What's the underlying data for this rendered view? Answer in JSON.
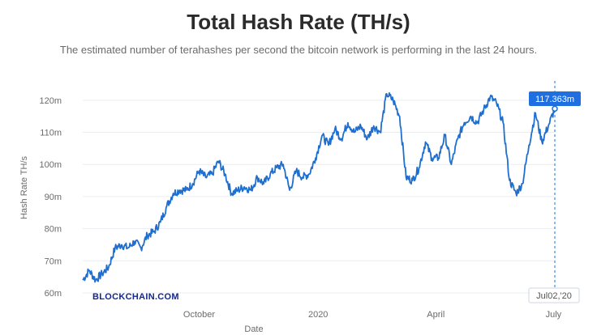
{
  "chart_data": {
    "type": "line",
    "title": "Total Hash Rate (TH/s)",
    "subtitle": "The estimated number of terahashes per second the bitcoin network is performing in the last 24 hours.",
    "xlabel": "Date",
    "ylabel": "Hash Rate TH/s",
    "ylim": [
      60,
      125
    ],
    "y_ticks": [
      {
        "value": 60,
        "label": "60m"
      },
      {
        "value": 70,
        "label": "70m"
      },
      {
        "value": 80,
        "label": "80m"
      },
      {
        "value": 90,
        "label": "90m"
      },
      {
        "value": 100,
        "label": "100m"
      },
      {
        "value": 110,
        "label": "110m"
      },
      {
        "value": 120,
        "label": "120m"
      }
    ],
    "xlim": [
      "2019-07-03",
      "2020-07-02"
    ],
    "x_ticks": [
      {
        "value": "2019-10-01",
        "label": "October"
      },
      {
        "value": "2020-01-01",
        "label": "2020"
      },
      {
        "value": "2020-04-01",
        "label": "April"
      },
      {
        "value": "2020-07-01",
        "label": "July"
      }
    ],
    "grid": true,
    "line_color": "#1f6fd1",
    "series": [
      {
        "x": [
          "2019-07-03",
          "2019-07-08",
          "2019-07-13",
          "2019-07-18",
          "2019-07-23",
          "2019-07-28",
          "2019-08-02",
          "2019-08-07",
          "2019-08-12",
          "2019-08-17",
          "2019-08-22",
          "2019-08-27",
          "2019-09-01",
          "2019-09-06",
          "2019-09-11",
          "2019-09-16",
          "2019-09-21",
          "2019-09-26",
          "2019-10-01",
          "2019-10-06",
          "2019-10-11",
          "2019-10-16",
          "2019-10-21",
          "2019-10-26",
          "2019-10-31",
          "2019-11-05",
          "2019-11-10",
          "2019-11-15",
          "2019-11-20",
          "2019-11-25",
          "2019-11-30",
          "2019-12-05",
          "2019-12-10",
          "2019-12-15",
          "2019-12-20",
          "2019-12-25",
          "2019-12-30",
          "2020-01-04",
          "2020-01-09",
          "2020-01-14",
          "2020-01-19",
          "2020-01-24",
          "2020-01-29",
          "2020-02-03",
          "2020-02-08",
          "2020-02-13",
          "2020-02-18",
          "2020-02-23",
          "2020-02-28",
          "2020-03-04",
          "2020-03-09",
          "2020-03-14",
          "2020-03-19",
          "2020-03-24",
          "2020-03-29",
          "2020-04-03",
          "2020-04-08",
          "2020-04-13",
          "2020-04-18",
          "2020-04-23",
          "2020-04-28",
          "2020-05-03",
          "2020-05-08",
          "2020-05-13",
          "2020-05-18",
          "2020-05-23",
          "2020-05-28",
          "2020-06-02",
          "2020-06-07",
          "2020-06-12",
          "2020-06-17",
          "2020-06-22",
          "2020-06-27",
          "2020-07-02"
        ],
        "y": [
          64,
          67,
          64,
          66,
          68,
          74,
          75,
          74,
          76,
          74,
          78,
          79,
          82,
          87,
          91,
          92,
          92,
          94,
          98,
          96,
          97,
          101,
          97,
          91,
          92,
          93,
          92,
          96,
          94,
          97,
          99,
          100,
          92,
          98,
          96,
          97,
          102,
          109,
          106,
          111,
          108,
          113,
          110,
          112,
          108,
          112,
          110,
          122,
          120,
          115,
          96,
          95,
          99,
          107,
          102,
          102,
          109,
          100,
          108,
          113,
          115,
          113,
          117,
          121,
          119,
          113,
          95,
          91,
          94,
          106,
          116,
          107,
          112,
          117.363
        ]
      }
    ],
    "tooltip": {
      "value_label": "117.363m",
      "date_label": "Jul02,'20"
    },
    "watermark": "BLOCKCHAIN.COM"
  }
}
